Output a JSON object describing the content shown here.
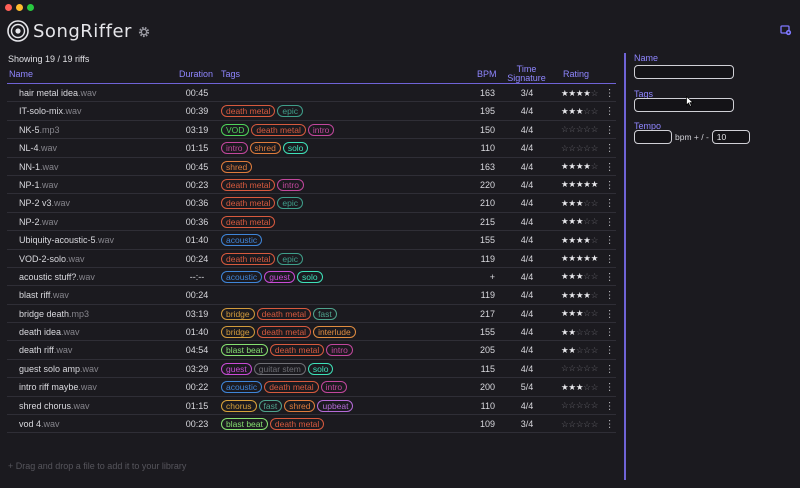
{
  "app": {
    "title": "SongRiffer"
  },
  "summary": "Showing 19 / 19 riffs",
  "columns": {
    "name": "Name",
    "duration": "Duration",
    "tags": "Tags",
    "bpm": "BPM",
    "time_sig": "Time Signature",
    "rating": "Rating"
  },
  "tag_colors": {
    "death metal": "#d75a3e",
    "epic": "#3f9e8a",
    "VOD": "#4fd35a",
    "intro": "#c2479d",
    "shred": "#de7c3c",
    "solo": "#3ee0b8",
    "acoustic": "#3f85d8",
    "guest": "#c94bd6",
    "bridge": "#d29a3c",
    "fast": "#4fa38d",
    "interlude": "#e08c40",
    "blast beat": "#86e070",
    "guitar stem": "#6e6e74",
    "chorus": "#d8a23a",
    "upbeat": "#b66bd8"
  },
  "rows": [
    {
      "name": "hair metal idea",
      "ext": ".wav",
      "duration": "00:45",
      "tags": [],
      "bpm": "163",
      "ts": "3/4",
      "rating": 4
    },
    {
      "name": "IT-solo-mix",
      "ext": ".wav",
      "duration": "00:39",
      "tags": [
        "death metal",
        "epic"
      ],
      "bpm": "195",
      "ts": "4/4",
      "rating": 3
    },
    {
      "name": "NK-5",
      "ext": ".mp3",
      "duration": "03:19",
      "tags": [
        "VOD",
        "death metal",
        "intro"
      ],
      "bpm": "150",
      "ts": "4/4",
      "rating": 0
    },
    {
      "name": "NL-4",
      "ext": ".wav",
      "duration": "01:15",
      "tags": [
        "intro",
        "shred",
        "solo"
      ],
      "bpm": "110",
      "ts": "4/4",
      "rating": 0
    },
    {
      "name": "NN-1",
      "ext": ".wav",
      "duration": "00:45",
      "tags": [
        "shred"
      ],
      "bpm": "163",
      "ts": "4/4",
      "rating": 4
    },
    {
      "name": "NP-1",
      "ext": ".wav",
      "duration": "00:23",
      "tags": [
        "death metal",
        "intro"
      ],
      "bpm": "220",
      "ts": "4/4",
      "rating": 5
    },
    {
      "name": "NP-2 v3",
      "ext": ".wav",
      "duration": "00:36",
      "tags": [
        "death metal",
        "epic"
      ],
      "bpm": "210",
      "ts": "4/4",
      "rating": 3
    },
    {
      "name": "NP-2",
      "ext": ".wav",
      "duration": "00:36",
      "tags": [
        "death metal"
      ],
      "bpm": "215",
      "ts": "4/4",
      "rating": 3
    },
    {
      "name": "Ubiquity-acoustic-5",
      "ext": ".wav",
      "duration": "01:40",
      "tags": [
        "acoustic"
      ],
      "bpm": "155",
      "ts": "4/4",
      "rating": 4
    },
    {
      "name": "VOD-2-solo",
      "ext": ".wav",
      "duration": "00:24",
      "tags": [
        "death metal",
        "epic"
      ],
      "bpm": "119",
      "ts": "4/4",
      "rating": 5
    },
    {
      "name": "acoustic stuff?",
      "ext": ".wav",
      "duration": "--:--",
      "tags": [
        "acoustic",
        "guest",
        "solo"
      ],
      "bpm": "+",
      "ts": "4/4",
      "rating": 3
    },
    {
      "name": "blast riff",
      "ext": ".wav",
      "duration": "00:24",
      "tags": [],
      "bpm": "119",
      "ts": "4/4",
      "rating": 4
    },
    {
      "name": "bridge death",
      "ext": ".mp3",
      "duration": "03:19",
      "tags": [
        "bridge",
        "death metal",
        "fast"
      ],
      "bpm": "217",
      "ts": "4/4",
      "rating": 3
    },
    {
      "name": "death idea",
      "ext": ".wav",
      "duration": "01:40",
      "tags": [
        "bridge",
        "death metal",
        "interlude"
      ],
      "bpm": "155",
      "ts": "4/4",
      "rating": 2
    },
    {
      "name": "death riff",
      "ext": ".wav",
      "duration": "04:54",
      "tags": [
        "blast beat",
        "death metal",
        "intro"
      ],
      "bpm": "205",
      "ts": "4/4",
      "rating": 2
    },
    {
      "name": "guest solo amp",
      "ext": ".wav",
      "duration": "03:29",
      "tags": [
        "guest",
        "guitar stem",
        "solo"
      ],
      "bpm": "115",
      "ts": "4/4",
      "rating": 0
    },
    {
      "name": "intro riff maybe",
      "ext": ".wav",
      "duration": "00:22",
      "tags": [
        "acoustic",
        "death metal",
        "intro"
      ],
      "bpm": "200",
      "ts": "5/4",
      "rating": 3
    },
    {
      "name": "shred chorus",
      "ext": ".wav",
      "duration": "01:15",
      "tags": [
        "chorus",
        "fast",
        "shred",
        "upbeat"
      ],
      "bpm": "110",
      "ts": "4/4",
      "rating": 0
    },
    {
      "name": "vod 4",
      "ext": ".wav",
      "duration": "00:23",
      "tags": [
        "blast beat",
        "death metal"
      ],
      "bpm": "109",
      "ts": "3/4",
      "rating": 0
    }
  ],
  "dropzone": "+ Drag and drop a file to add it to your library",
  "filters": {
    "name_label": "Name",
    "name_value": "",
    "tags_label": "Tags",
    "tags_value": "",
    "tempo_label": "Tempo",
    "tempo_value": "",
    "tempo_sep": "bpm + / -",
    "tempo_range": "10"
  }
}
